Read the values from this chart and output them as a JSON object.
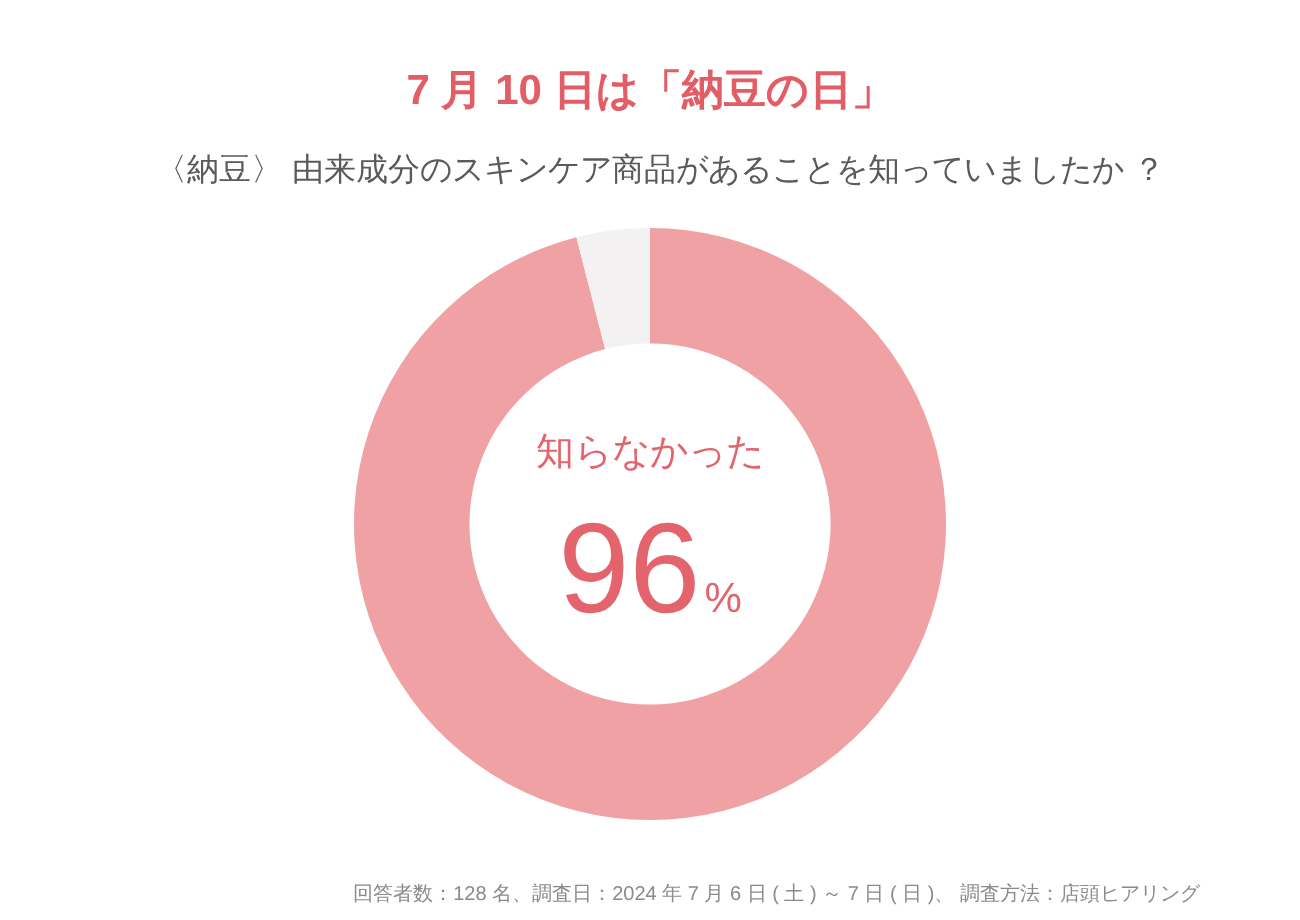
{
  "chart_data": {
    "type": "donut",
    "title": "7 月 10 日は「納豆の日」",
    "subtitle": "〈納豆〉 由来成分のスキンケア商品があることを知っていましたか ？",
    "categories": [
      "知らなかった",
      null
    ],
    "values": [
      96,
      4
    ],
    "colors": [
      "#f0a1a4",
      "#f3f1f2"
    ],
    "value_labels": [
      "96%",
      null
    ],
    "annotations": [
      "回答者数：128 名、調査日：2024 年 7 月 6 日 ( 土 ) ～ 7 日 ( 日 )、 調査方法：店頭ヒアリング"
    ]
  }
}
